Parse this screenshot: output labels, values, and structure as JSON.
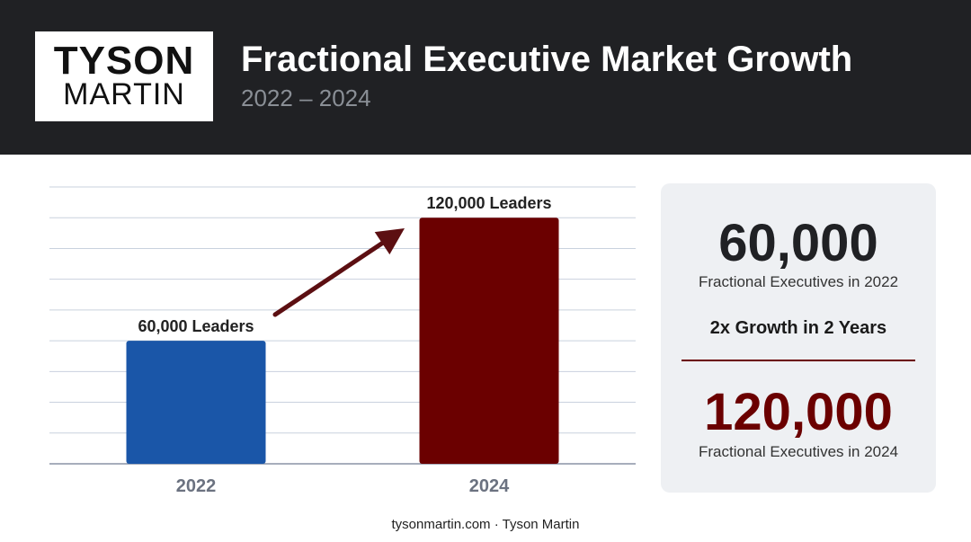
{
  "logo": {
    "line1": "TYSON",
    "line2": "MARTIN"
  },
  "header": {
    "title": "Fractional Executive Market Growth",
    "subtitle": "2022 – 2024"
  },
  "chart_data": {
    "type": "bar",
    "categories": [
      "2022",
      "2024"
    ],
    "values": [
      60000,
      120000
    ],
    "data_labels": [
      "60,000 Leaders",
      "120,000 Leaders"
    ],
    "colors": [
      "#1a56a8",
      "#6b0000"
    ],
    "ylim": [
      0,
      135000
    ],
    "grid": true,
    "xlabel": "",
    "ylabel": "",
    "annotation": "growth-arrow"
  },
  "panel": {
    "stat1_value": "60,000",
    "stat1_caption": "Fractional Executives in 2022",
    "growth_text": "2x Growth in 2 Years",
    "stat2_value": "120,000",
    "stat2_caption": "Fractional Executives in 2024",
    "stat1_color": "#202124",
    "stat2_color": "#6b0000",
    "divider_color": "#6b0000"
  },
  "footer": {
    "text": "tysonmartin.com · Tyson Martin"
  }
}
